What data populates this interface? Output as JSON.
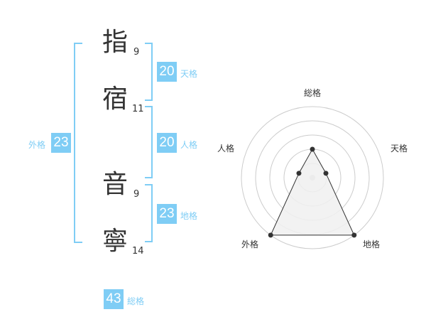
{
  "name": {
    "chars": [
      {
        "char": "指",
        "strokes": "9"
      },
      {
        "char": "宿",
        "strokes": "11"
      },
      {
        "char": "音",
        "strokes": "9"
      },
      {
        "char": "寧",
        "strokes": "14"
      }
    ]
  },
  "kaku": {
    "tenkaku": {
      "label": "天格",
      "value": "20"
    },
    "jinkaku": {
      "label": "人格",
      "value": "20"
    },
    "chikaku": {
      "label": "地格",
      "value": "23"
    },
    "gaikaku": {
      "label": "外格",
      "value": "23"
    },
    "soukaku": {
      "label": "総格",
      "value": "43"
    }
  },
  "colors": {
    "accent": "#7fcdf5",
    "radar_line": "#333333",
    "radar_fill": "#f0f0f0",
    "ring": "#cccccc"
  },
  "chart_data": {
    "type": "radar",
    "axes": [
      "総格",
      "天格",
      "地格",
      "外格",
      "人格"
    ],
    "values": [
      2,
      1,
      5,
      5,
      1
    ],
    "range": [
      0,
      5
    ],
    "rings": 5
  }
}
